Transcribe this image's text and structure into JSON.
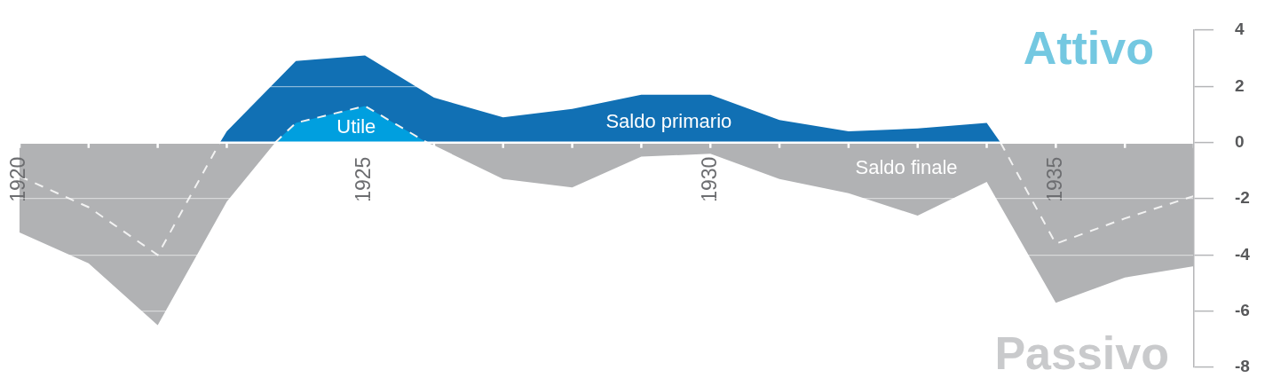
{
  "chart_data": {
    "type": "area",
    "annotations": [
      "Attivo",
      "Passivo"
    ],
    "xlim": [
      1920,
      1937
    ],
    "xticks": [
      1920,
      {
        "value": 1921,
        "label": null
      },
      {
        "value": 1922,
        "label": null
      },
      {
        "value": 1923,
        "label": null
      },
      {
        "value": 1924,
        "label": null
      },
      1925,
      {
        "value": 1926,
        "label": null
      },
      {
        "value": 1927,
        "label": null
      },
      {
        "value": 1928,
        "label": null
      },
      {
        "value": 1929,
        "label": null
      },
      1930,
      {
        "value": 1931,
        "label": null
      },
      {
        "value": 1932,
        "label": null
      },
      {
        "value": 1933,
        "label": null
      },
      {
        "value": 1934,
        "label": null
      },
      1935,
      {
        "value": 1936,
        "label": null
      },
      {
        "value": 1937,
        "label": null
      }
    ],
    "ylim": [
      -8,
      4
    ],
    "yticks": [
      -8,
      -6,
      -4,
      -2,
      0,
      2,
      4
    ],
    "grid": "y",
    "line_style": "dashed",
    "series": [
      {
        "name": "Saldo primario",
        "type": "area",
        "color": "#1170b4",
        "x": [
          1922.9,
          1923,
          1924,
          1925,
          1926,
          1927,
          1928,
          1929,
          1930,
          1931,
          1932,
          1933,
          1934,
          1934.2
        ],
        "values": [
          0,
          0.4,
          2.9,
          3.1,
          1.6,
          0.9,
          1.2,
          1.7,
          1.7,
          0.8,
          0.4,
          0.5,
          0.7,
          0
        ]
      },
      {
        "name": "Utile",
        "type": "area",
        "color": "#009fdf",
        "line_style": "dashed",
        "x": [
          1923.7,
          1924,
          1925,
          1925.9
        ],
        "values": [
          0,
          0.7,
          1.3,
          0
        ]
      },
      {
        "name": "Saldo finale",
        "type": "area",
        "color": "#b1b2b4",
        "x": [
          1920,
          1921,
          1922,
          1923,
          1923.7,
          1925.9,
          1926,
          1927,
          1928,
          1929,
          1930,
          1931,
          1932,
          1933,
          1934,
          1935,
          1936,
          1937
        ],
        "values": [
          -3.2,
          -4.3,
          -6.5,
          -2.1,
          0,
          0,
          -0.1,
          -1.3,
          -1.6,
          -0.5,
          -0.4,
          -1.3,
          -1.8,
          -2.6,
          -1.4,
          -5.7,
          -4.8,
          -4.4
        ]
      },
      {
        "type": "line",
        "color": "#f2f2f2",
        "x": [
          1920,
          1921,
          1922,
          1922.9
        ],
        "values": [
          -1.2,
          -2.3,
          -4,
          0
        ]
      },
      {
        "type": "line",
        "color": "#f2f2f2",
        "x": [
          1934.2,
          1935,
          1936,
          1937
        ],
        "values": [
          0,
          -3.6,
          -2.7,
          -1.9
        ]
      }
    ]
  }
}
